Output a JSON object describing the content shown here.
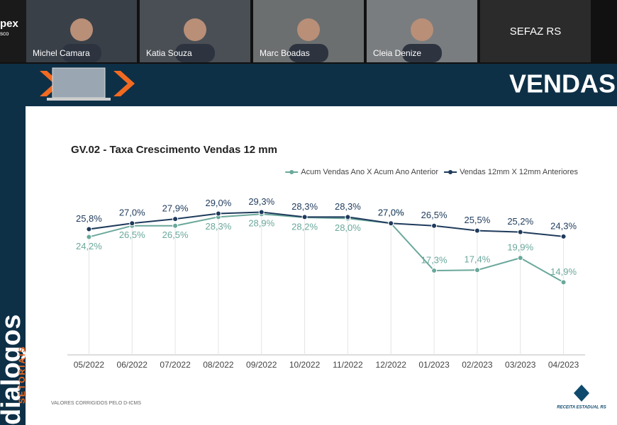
{
  "call": {
    "partial_tile": [
      "pex",
      "sco"
    ],
    "participants": [
      "Michel Camara",
      "Katia Souza",
      "Marc Boadas",
      "Cleia Denize"
    ],
    "room": "SEFAZ RS"
  },
  "slide": {
    "banner_title": "VENDAS",
    "brand": "dialogos",
    "brand_sub": "SETORIAIS",
    "note": "VALORES CORRIGIDOS PELO D-ICMS",
    "logo": "RECEITA ESTADUAL RS"
  },
  "chart_data": {
    "type": "line",
    "title": "GV.02 - Taxa Crescimento Vendas 12 mm",
    "categories": [
      "05/2022",
      "06/2022",
      "07/2022",
      "08/2022",
      "09/2022",
      "10/2022",
      "11/2022",
      "12/2022",
      "01/2023",
      "02/2023",
      "03/2023",
      "04/2023"
    ],
    "series": [
      {
        "name": "Acum Vendas Ano X Acum Ano Anterior",
        "color": "#6aa89b",
        "values": [
          24.2,
          26.5,
          26.5,
          28.3,
          28.9,
          28.2,
          28.0,
          27.0,
          17.3,
          17.4,
          19.9,
          14.9
        ],
        "value_labels": [
          "24,2%",
          "26,5%",
          "26,5%",
          "28,3%",
          "28,9%",
          "28,2%",
          "28,0%",
          "27,0%",
          "17,3%",
          "17,4%",
          "19,9%",
          "14,9%"
        ]
      },
      {
        "name": "Vendas 12mm X 12mm Anteriores",
        "color": "#1f3b5c",
        "values": [
          25.8,
          27.0,
          27.9,
          29.0,
          29.3,
          28.3,
          28.3,
          27.0,
          26.5,
          25.5,
          25.2,
          24.3
        ],
        "value_labels": [
          "25,8%",
          "27,0%",
          "27,9%",
          "29,0%",
          "29,3%",
          "28,3%",
          "28,3%",
          "27,0%",
          "26,5%",
          "25,5%",
          "25,2%",
          "24,3%"
        ]
      }
    ],
    "ylim": [
      0,
      33
    ],
    "legend": "top-right",
    "drop_lines": true
  }
}
